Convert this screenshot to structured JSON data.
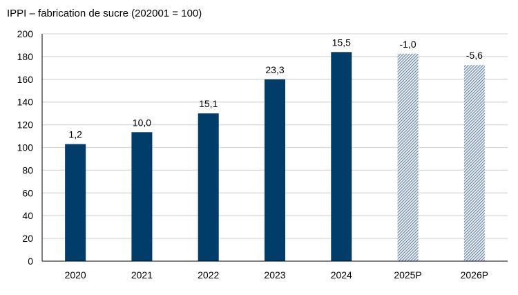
{
  "chart_data": {
    "type": "bar",
    "title": "IPPI – fabrication de sucre (202001 = 100)",
    "xlabel": "",
    "ylabel": "",
    "ylim": [
      0,
      200
    ],
    "yticks": [
      0,
      20,
      40,
      60,
      80,
      100,
      120,
      140,
      160,
      180,
      200
    ],
    "grid": true,
    "categories": [
      "2020",
      "2021",
      "2022",
      "2023",
      "2024",
      "2025P",
      "2026P"
    ],
    "values": [
      103,
      113.5,
      130,
      160,
      184,
      182.5,
      172.5
    ],
    "data_labels": [
      "1,2",
      "10,0",
      "15,1",
      "23,3",
      "15,5",
      "-1,0",
      "-5,6"
    ],
    "forecast": [
      false,
      false,
      false,
      false,
      false,
      true,
      true
    ],
    "colors": {
      "actual": "#003d6b",
      "forecast_hatch": "#5a7a9a",
      "grid": "#d9d9d9"
    }
  }
}
